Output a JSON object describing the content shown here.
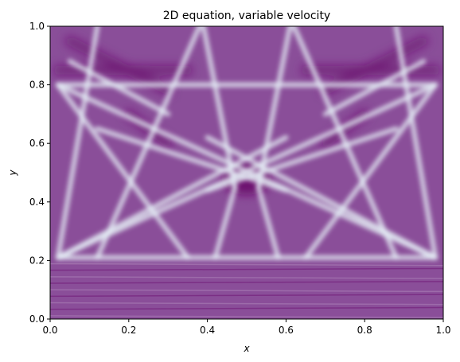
{
  "chart_data": {
    "type": "heatmap",
    "title": "2D equation, variable velocity",
    "xlabel": "x",
    "ylabel": "y",
    "xlim": [
      0.0,
      1.0
    ],
    "ylim": [
      0.0,
      1.0
    ],
    "xticks": [
      0.0,
      0.2,
      0.4,
      0.6,
      0.8,
      1.0
    ],
    "yticks": [
      0.0,
      0.2,
      0.4,
      0.6,
      0.8,
      1.0
    ],
    "xtick_labels": [
      "0.0",
      "0.2",
      "0.4",
      "0.6",
      "0.8",
      "1.0"
    ],
    "ytick_labels": [
      "0.0",
      "0.2",
      "0.4",
      "0.6",
      "0.8",
      "1.0"
    ],
    "grid": false,
    "colormap": {
      "background": "#8a4e99",
      "dark": "#6b0a6e",
      "light": "#e6f0f7"
    },
    "velocity_interface_y": 0.2,
    "light_wavefronts": [
      {
        "from": [
          0.02,
          0.21
        ],
        "to": [
          0.12,
          1.0
        ]
      },
      {
        "from": [
          0.02,
          0.21
        ],
        "to": [
          0.6,
          0.62
        ]
      },
      {
        "from": [
          0.02,
          0.21
        ],
        "to": [
          0.98,
          0.8
        ]
      },
      {
        "from": [
          0.98,
          0.21
        ],
        "to": [
          0.88,
          1.0
        ]
      },
      {
        "from": [
          0.98,
          0.21
        ],
        "to": [
          0.4,
          0.62
        ]
      },
      {
        "from": [
          0.98,
          0.21
        ],
        "to": [
          0.02,
          0.8
        ]
      },
      {
        "from": [
          0.02,
          0.21
        ],
        "to": [
          0.98,
          0.21
        ]
      },
      {
        "from": [
          0.02,
          0.8
        ],
        "to": [
          0.98,
          0.8
        ]
      },
      {
        "from": [
          0.02,
          0.8
        ],
        "to": [
          0.35,
          0.21
        ]
      },
      {
        "from": [
          0.98,
          0.8
        ],
        "to": [
          0.65,
          0.21
        ]
      },
      {
        "from": [
          0.12,
          0.21
        ],
        "to": [
          0.38,
          1.0
        ]
      },
      {
        "from": [
          0.88,
          0.21
        ],
        "to": [
          0.62,
          1.0
        ]
      },
      {
        "from": [
          0.39,
          1.0
        ],
        "to": [
          0.47,
          0.45
        ]
      },
      {
        "from": [
          0.61,
          1.0
        ],
        "to": [
          0.53,
          0.45
        ]
      },
      {
        "from": [
          0.47,
          0.45
        ],
        "to": [
          0.42,
          0.21
        ]
      },
      {
        "from": [
          0.53,
          0.45
        ],
        "to": [
          0.58,
          0.21
        ]
      },
      {
        "from": [
          0.05,
          0.88
        ],
        "to": [
          0.3,
          0.7
        ]
      },
      {
        "from": [
          0.95,
          0.88
        ],
        "to": [
          0.7,
          0.7
        ]
      },
      {
        "from": [
          0.12,
          0.65
        ],
        "to": [
          0.6,
          0.44
        ]
      },
      {
        "from": [
          0.88,
          0.65
        ],
        "to": [
          0.4,
          0.44
        ]
      }
    ],
    "dark_features": [
      {
        "type": "band",
        "from": [
          0.02,
          0.85
        ],
        "to": [
          0.35,
          0.85
        ]
      },
      {
        "type": "band",
        "from": [
          0.65,
          0.85
        ],
        "to": [
          0.98,
          0.85
        ]
      },
      {
        "type": "band",
        "from": [
          0.05,
          0.95
        ],
        "to": [
          0.3,
          0.78
        ]
      },
      {
        "type": "band",
        "from": [
          0.95,
          0.95
        ],
        "to": [
          0.7,
          0.78
        ]
      },
      {
        "type": "band",
        "from": [
          0.2,
          0.7
        ],
        "to": [
          0.3,
          0.6
        ]
      },
      {
        "type": "band",
        "from": [
          0.8,
          0.7
        ],
        "to": [
          0.7,
          0.6
        ]
      },
      {
        "type": "blob",
        "center": [
          0.5,
          0.48
        ],
        "size": [
          0.08,
          0.07
        ]
      }
    ]
  }
}
